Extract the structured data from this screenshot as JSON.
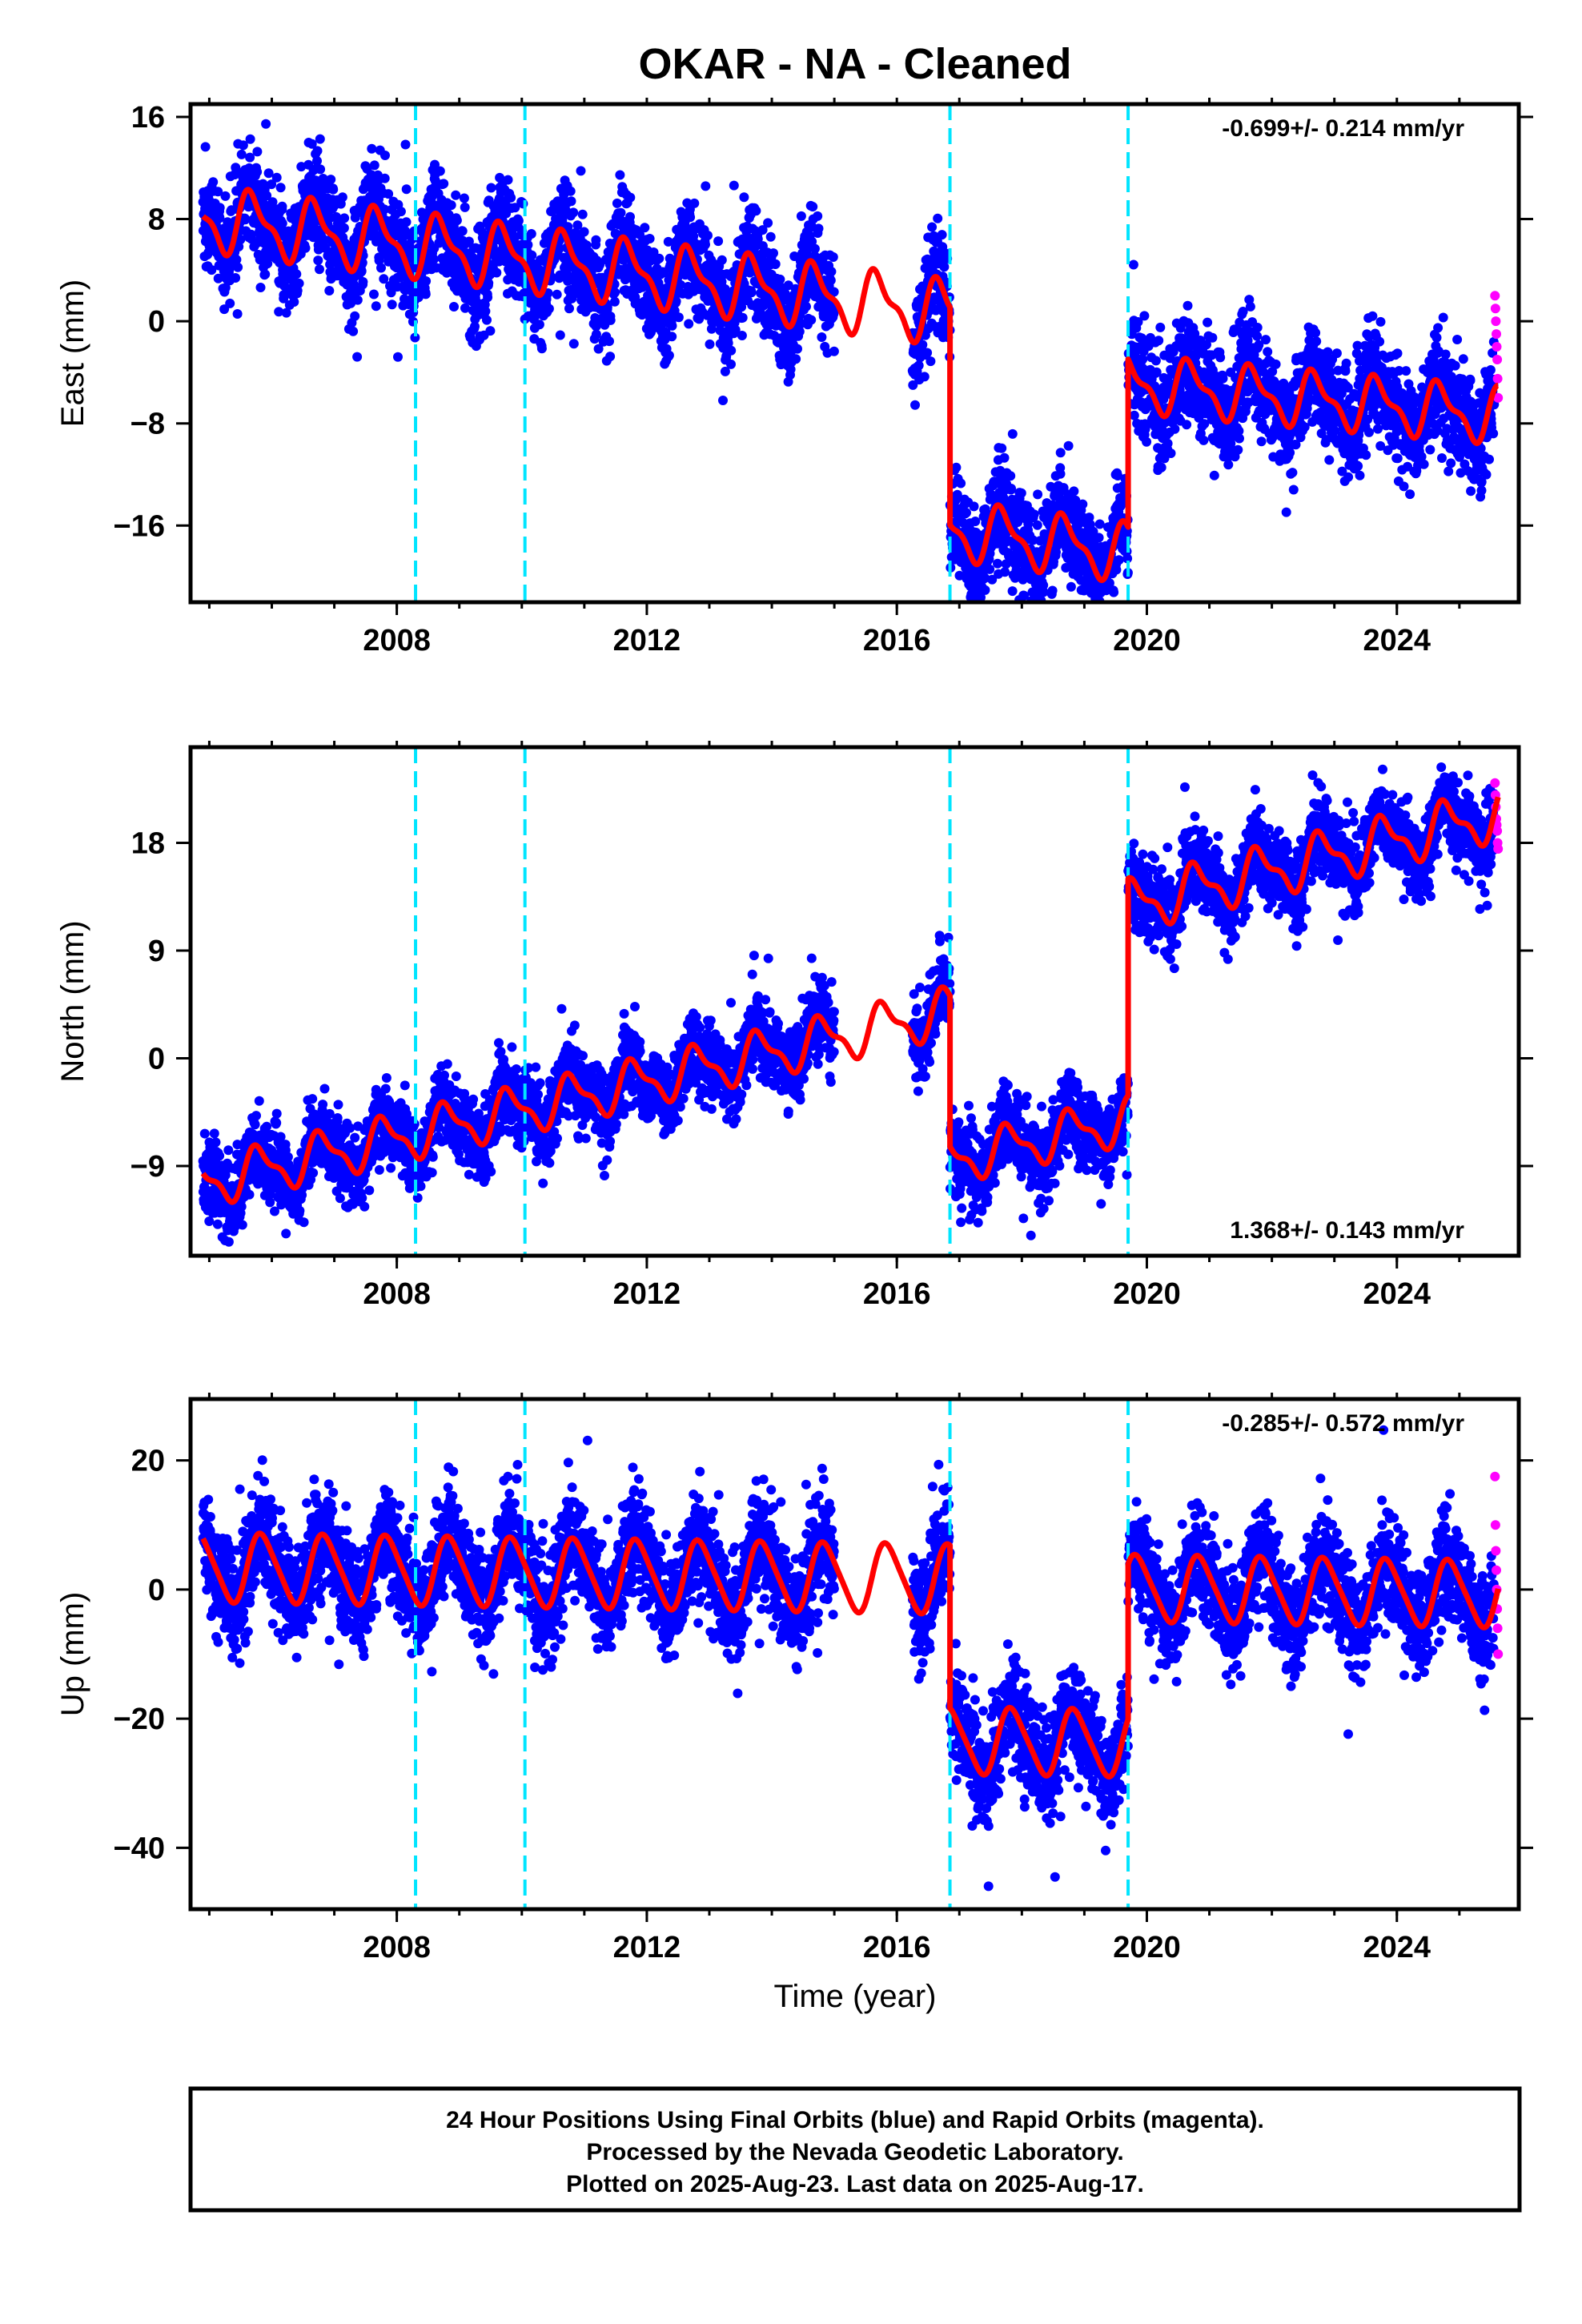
{
  "title": "OKAR  - NA - Cleaned",
  "colors": {
    "final_orbits": "#0000ff",
    "rapid_orbits": "#ff00ff",
    "model": "#ff0000",
    "offsets": "#00e5ff",
    "frame": "#000000"
  },
  "xlabel": "Time (year)",
  "footnote": [
    "24 Hour Positions Using Final Orbits (blue) and Rapid Orbits (magenta).",
    "Processed by the Nevada Geodetic Laboratory.",
    "Plotted on 2025-Aug-23. Last data on 2025-Aug-17."
  ],
  "chart_data": [
    {
      "type": "scatter",
      "component": "east",
      "ylabel": "East (mm)",
      "xlim": [
        2004.7,
        2025.95
      ],
      "ylim": [
        -22,
        17
      ],
      "xticks": [
        2008,
        2012,
        2016,
        2020,
        2024
      ],
      "yticks": [
        -16,
        -8,
        0,
        8,
        16
      ],
      "rate_text": "-0.699+/- 0.214 mm/yr",
      "rate_position": "top-right",
      "offset_epochs": [
        2008.3,
        2010.05,
        2016.85,
        2019.7
      ],
      "data_gap": [
        2015.0,
        2016.25
      ],
      "model": {
        "segments": [
          {
            "x_start": 2004.9,
            "x_end": 2016.85,
            "value_at_2005": 8.0,
            "rate_mm_per_yr": -0.62,
            "annual_amplitude": 2.2,
            "semiannual_amplitude": 0.9,
            "phase_year": 0.45
          },
          {
            "x_start": 2016.85,
            "x_end": 2019.7,
            "value_at_2005": -9.0,
            "rate_mm_per_yr": -0.62,
            "annual_amplitude": 2.0,
            "semiannual_amplitude": 0.8,
            "phase_year": 0.45
          },
          {
            "x_start": 2019.7,
            "x_end": 2025.62,
            "value_at_2005": 1.3,
            "rate_mm_per_yr": -0.42,
            "annual_amplitude": 1.9,
            "semiannual_amplitude": 0.8,
            "phase_year": 0.45
          }
        ]
      },
      "scatter_noise_mm": 2.0,
      "rapid_points": [
        2.0,
        1.0,
        0.0,
        -1.0,
        -2.0,
        -3.0,
        -4.5,
        -6.0
      ]
    },
    {
      "type": "scatter",
      "component": "north",
      "ylabel": "North (mm)",
      "xlim": [
        2004.7,
        2025.95
      ],
      "ylim": [
        -16.5,
        26
      ],
      "xticks": [
        2008,
        2012,
        2016,
        2020,
        2024
      ],
      "yticks": [
        -9,
        0,
        9,
        18
      ],
      "rate_text": "1.368+/- 0.143 mm/yr",
      "rate_position": "bottom-right",
      "offset_epochs": [
        2008.3,
        2010.05,
        2016.85,
        2019.7
      ],
      "data_gap": [
        2015.0,
        2016.25
      ],
      "model": {
        "segments": [
          {
            "x_start": 2004.9,
            "x_end": 2016.85,
            "value_at_2005": -10.3,
            "rate_mm_per_yr": 1.2,
            "annual_amplitude": 1.8,
            "semiannual_amplitude": 0.7,
            "phase_year": 0.55
          },
          {
            "x_start": 2016.85,
            "x_end": 2019.7,
            "value_at_2005": -22.8,
            "rate_mm_per_yr": 1.2,
            "annual_amplitude": 1.7,
            "semiannual_amplitude": 0.7,
            "phase_year": 0.55
          },
          {
            "x_start": 2019.7,
            "x_end": 2025.62,
            "value_at_2005": -6.4,
            "rate_mm_per_yr": 1.3,
            "annual_amplitude": 1.9,
            "semiannual_amplitude": 0.8,
            "phase_year": 0.55
          }
        ]
      },
      "scatter_noise_mm": 1.6,
      "rapid_points": [
        23.0,
        22.0,
        21.0,
        20.0,
        19.5,
        19.0,
        18.0,
        17.5
      ]
    },
    {
      "type": "scatter",
      "component": "up",
      "ylabel": "Up (mm)",
      "xlim": [
        2004.7,
        2025.95
      ],
      "ylim": [
        -49.5,
        29.5
      ],
      "xticks": [
        2008,
        2012,
        2016,
        2020,
        2024
      ],
      "yticks": [
        -40,
        -20,
        0,
        20
      ],
      "rate_text": "-0.285+/- 0.572 mm/yr",
      "rate_position": "top-right",
      "offset_epochs": [
        2008.3,
        2010.05,
        2016.85,
        2019.7
      ],
      "data_gap": [
        2015.0,
        2016.25
      ],
      "model": {
        "segments": [
          {
            "x_start": 2004.9,
            "x_end": 2016.85,
            "value_at_2005": 3.4,
            "rate_mm_per_yr": -0.15,
            "annual_amplitude": 5.2,
            "semiannual_amplitude": 0.8,
            "phase_year": 0.6
          },
          {
            "x_start": 2016.85,
            "x_end": 2019.7,
            "value_at_2005": -21.6,
            "rate_mm_per_yr": -0.15,
            "annual_amplitude": 5.0,
            "semiannual_amplitude": 0.8,
            "phase_year": 0.6
          },
          {
            "x_start": 2019.7,
            "x_end": 2025.62,
            "value_at_2005": 2.4,
            "rate_mm_per_yr": -0.15,
            "annual_amplitude": 5.0,
            "semiannual_amplitude": 0.8,
            "phase_year": 0.6
          }
        ]
      },
      "scatter_noise_mm": 4.0,
      "rapid_points": [
        17.5,
        10.0,
        6.0,
        3.0,
        0.0,
        -3.0,
        -6.0,
        -10.0
      ]
    }
  ]
}
